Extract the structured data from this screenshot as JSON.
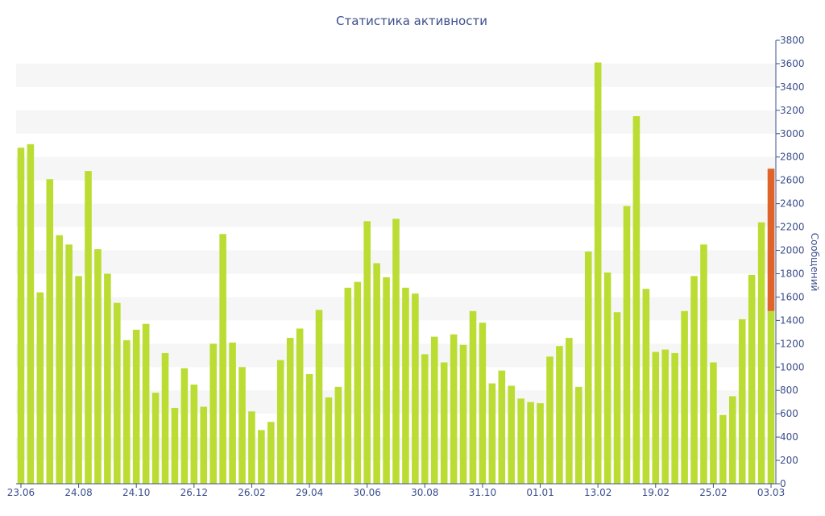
{
  "chart_data": {
    "type": "bar",
    "title": "Статистика активности",
    "xlabel": "",
    "ylabel": "Сообщений",
    "ylim": [
      0,
      3800
    ],
    "y_ticks": [
      0,
      200,
      400,
      600,
      800,
      1000,
      1200,
      1400,
      1600,
      1800,
      2000,
      2200,
      2400,
      2600,
      2800,
      3000,
      3200,
      3400,
      3600,
      3800
    ],
    "y_axis_position": "right",
    "grid": "alternating horizontal bands",
    "x_tick_labels": [
      {
        "index": 0,
        "label": "23.06"
      },
      {
        "index": 6,
        "label": "24.08"
      },
      {
        "index": 12,
        "label": "24.10"
      },
      {
        "index": 18,
        "label": "26.12"
      },
      {
        "index": 24,
        "label": "26.02"
      },
      {
        "index": 30,
        "label": "29.04"
      },
      {
        "index": 36,
        "label": "30.06"
      },
      {
        "index": 42,
        "label": "30.08"
      },
      {
        "index": 48,
        "label": "31.10"
      },
      {
        "index": 54,
        "label": "01.01"
      },
      {
        "index": 60,
        "label": "13.02"
      },
      {
        "index": 66,
        "label": "19.02"
      },
      {
        "index": 72,
        "label": "25.02"
      },
      {
        "index": 78,
        "label": "03.03"
      }
    ],
    "series": [
      {
        "values": [
          2880,
          2910,
          1640,
          2610,
          2130,
          2050,
          1780,
          2680,
          2010,
          1800,
          1550,
          1230,
          1320,
          1370,
          780,
          1120,
          650,
          990,
          850,
          660,
          1200,
          2140,
          1210,
          1000,
          620,
          460,
          530,
          1060,
          1250,
          1330,
          940,
          1490,
          740,
          830,
          1680,
          1730,
          2250,
          1890,
          1770,
          2270,
          1680,
          1630,
          1110,
          1260,
          1040,
          1280,
          1190,
          1480,
          1380,
          860,
          970,
          840,
          730,
          700,
          690,
          1090,
          1180,
          1250,
          830,
          1990,
          3610,
          1810,
          1470,
          2380,
          3150,
          1670,
          1130,
          1150,
          1120,
          1480,
          1780,
          2050,
          1040,
          590,
          750,
          1410,
          1790,
          2240,
          2700
        ],
        "color": "#bbdd33"
      }
    ],
    "highlight": {
      "index": 78,
      "color": "#e0642a"
    }
  }
}
